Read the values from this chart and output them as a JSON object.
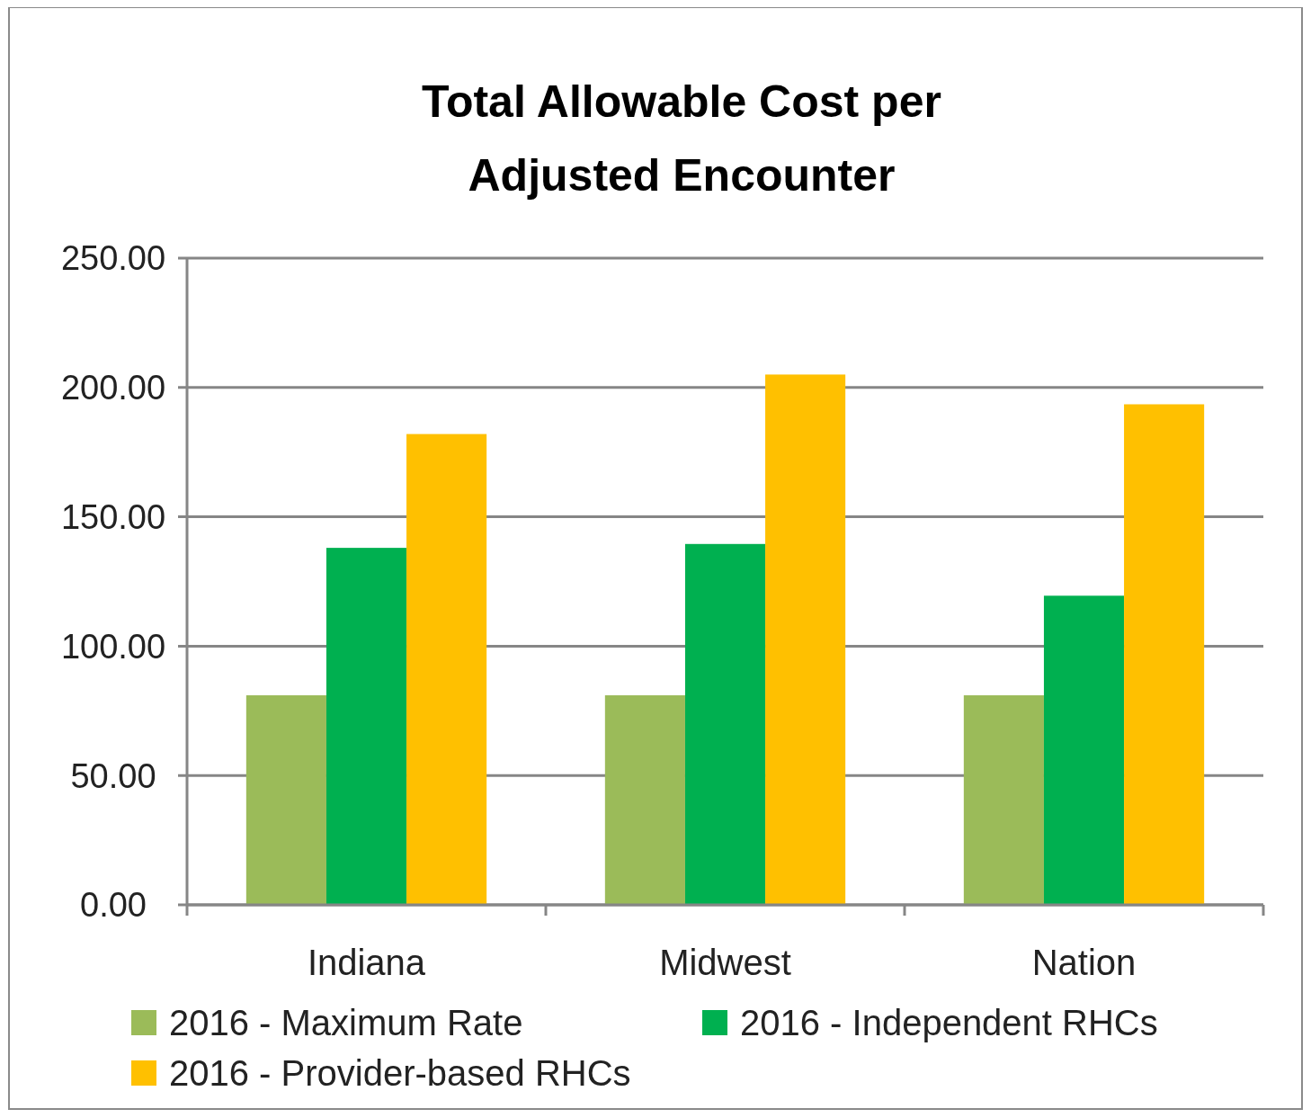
{
  "chart_data": {
    "type": "bar",
    "title": "Total Allowable Cost per Adjusted Encounter",
    "categories": [
      "Indiana",
      "Midwest",
      "Nation"
    ],
    "series": [
      {
        "name": "2016 - Maximum Rate",
        "color": "#9bbb59",
        "values": [
          81,
          81,
          81
        ]
      },
      {
        "name": "2016 - Independent RHCs",
        "color": "#00b050",
        "values": [
          138,
          139.5,
          119.5
        ]
      },
      {
        "name": "2016 - Provider-based RHCs",
        "color": "#ffc000",
        "values": [
          182,
          205,
          193.5
        ]
      }
    ],
    "ylim": [
      0,
      250
    ],
    "yticks": [
      {
        "value": 0,
        "label": "0.00"
      },
      {
        "value": 50,
        "label": "50.00"
      },
      {
        "value": 100,
        "label": "100.00"
      },
      {
        "value": 150,
        "label": "150.00"
      },
      {
        "value": 200,
        "label": "200.00"
      },
      {
        "value": 250,
        "label": "250.00"
      }
    ],
    "grid": "y",
    "legend": "bottom"
  }
}
